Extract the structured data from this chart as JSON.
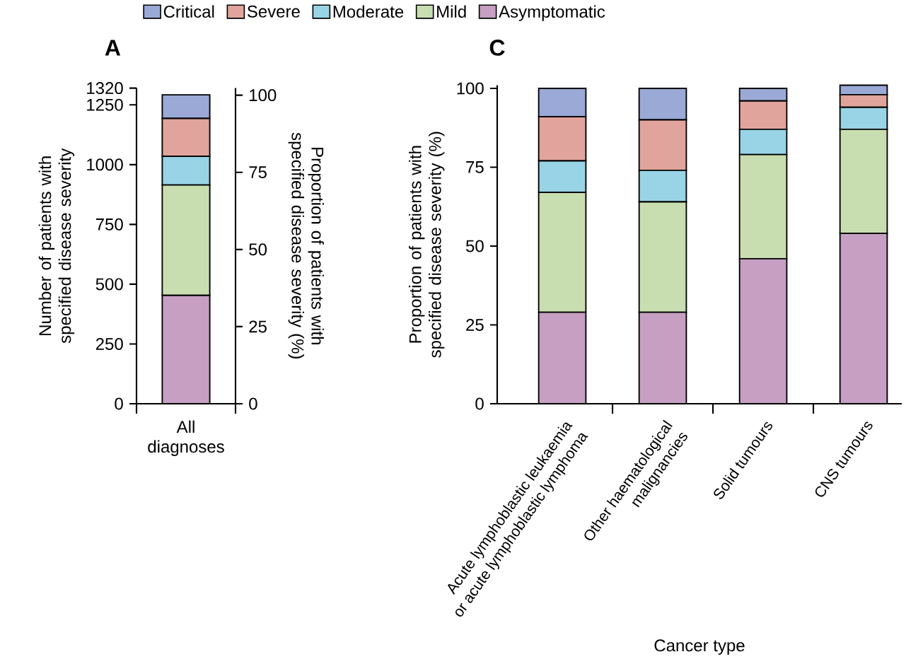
{
  "chart_data": [
    {
      "type": "bar",
      "stacked": true,
      "title": "A",
      "ylabel": "Number of patients with specified disease severity",
      "y2label": "Proportion of patients with specified disease severity (%)",
      "categories": [
        "All diagnoses"
      ],
      "ylim": [
        0,
        1320
      ],
      "yticks": [
        0,
        250,
        500,
        750,
        1000,
        1250,
        1320
      ],
      "y2lim": [
        0,
        102.3
      ],
      "y2ticks": [
        0,
        25,
        50,
        75,
        100
      ],
      "legend": "top",
      "series": [
        {
          "name": "Asymptomatic",
          "color": "#c69fc3",
          "values": [
            453
          ]
        },
        {
          "name": "Mild",
          "color": "#c9deb0",
          "values": [
            462
          ]
        },
        {
          "name": "Moderate",
          "color": "#99d3e6",
          "values": [
            120
          ]
        },
        {
          "name": "Severe",
          "color": "#e0a49c",
          "values": [
            158
          ]
        },
        {
          "name": "Critical",
          "color": "#9aa9d6",
          "values": [
            99
          ]
        }
      ]
    },
    {
      "type": "bar",
      "stacked": true,
      "title": "C",
      "ylabel": "Proportion of patients with specified disease severity (%)",
      "xlabel": "Cancer type",
      "categories": [
        "Acute lymphoblastic leukaemia or acute lymphoblastic lymphoma",
        "Other haematological malignancies",
        "Solid tumours",
        "CNS tumours"
      ],
      "ylim": [
        0,
        101
      ],
      "yticks": [
        0,
        25,
        50,
        75,
        100
      ],
      "series": [
        {
          "color": "#c69fc3",
          "values": [
            29,
            29,
            46,
            54
          ]
        },
        {
          "color": "#c9deb0",
          "values": [
            38,
            35,
            33,
            33
          ]
        },
        {
          "color": "#99d3e6",
          "values": [
            10,
            10,
            8,
            7
          ]
        },
        {
          "color": "#e0a49c",
          "values": [
            14,
            16,
            9,
            4
          ]
        },
        {
          "color": "#9aa9d6",
          "values": [
            9,
            10,
            4,
            3
          ]
        }
      ]
    }
  ]
}
